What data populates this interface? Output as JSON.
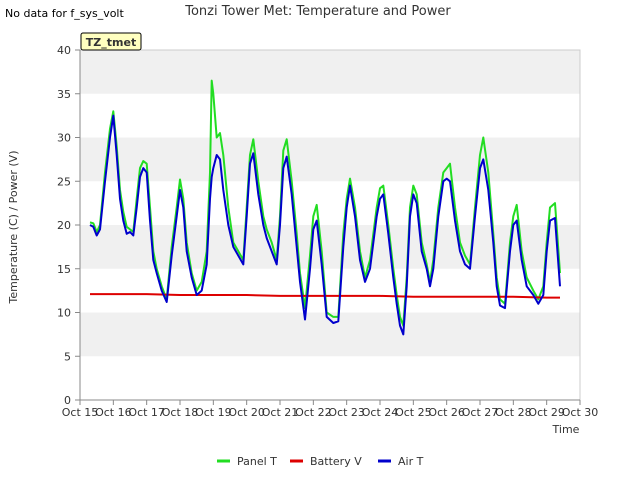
{
  "top_note": "No data for f_sys_volt",
  "chart_data": {
    "type": "line",
    "title": "Tonzi Tower Met: Temperature and Power",
    "xlabel": "Time",
    "ylabel": "Temperature (C) / Power (V)",
    "ylim": [
      0,
      40
    ],
    "xlim": [
      15,
      30
    ],
    "yticks": [
      0,
      5,
      10,
      15,
      20,
      25,
      30,
      35,
      40
    ],
    "xticks": [
      15,
      16,
      17,
      18,
      19,
      20,
      21,
      22,
      23,
      24,
      25,
      26,
      27,
      28,
      29,
      30
    ],
    "xtick_labels": [
      "Oct 15",
      "Oct 16",
      "Oct 17",
      "Oct 18",
      "Oct 19",
      "Oct 20",
      "Oct 21",
      "Oct 22",
      "Oct 23",
      "Oct 24",
      "Oct 25",
      "Oct 26",
      "Oct 27",
      "Oct 28",
      "Oct 29",
      "Oct 30"
    ],
    "grid": "horizontal bands",
    "legend": "bottom-center",
    "annotation": "TZ_tmet",
    "series": [
      {
        "name": "Panel T",
        "color": "#22dd22",
        "x": [
          15.3,
          15.4,
          15.5,
          15.6,
          15.75,
          15.9,
          16.0,
          16.1,
          16.2,
          16.3,
          16.4,
          16.5,
          16.6,
          16.7,
          16.8,
          16.9,
          17.0,
          17.1,
          17.2,
          17.3,
          17.45,
          17.6,
          17.75,
          17.9,
          18.0,
          18.1,
          18.2,
          18.35,
          18.5,
          18.65,
          18.8,
          18.9,
          18.95,
          19.0,
          19.1,
          19.2,
          19.3,
          19.45,
          19.6,
          19.75,
          19.9,
          20.0,
          20.1,
          20.2,
          20.35,
          20.5,
          20.6,
          20.75,
          20.9,
          21.0,
          21.1,
          21.2,
          21.35,
          21.5,
          21.6,
          21.75,
          21.9,
          22.0,
          22.1,
          22.25,
          22.4,
          22.6,
          22.75,
          22.9,
          23.0,
          23.1,
          23.25,
          23.4,
          23.55,
          23.7,
          23.9,
          24.0,
          24.1,
          24.25,
          24.4,
          24.5,
          24.6,
          24.7,
          24.8,
          24.9,
          25.0,
          25.1,
          25.25,
          25.4,
          25.5,
          25.6,
          25.75,
          25.9,
          26.0,
          26.1,
          26.25,
          26.4,
          26.55,
          26.7,
          26.85,
          27.0,
          27.1,
          27.25,
          27.4,
          27.5,
          27.6,
          27.75,
          27.9,
          28.0,
          28.1,
          28.25,
          28.4,
          28.6,
          28.75,
          28.9,
          29.0,
          29.1,
          29.25,
          29.4
        ],
        "values": [
          20.3,
          20.2,
          19.2,
          20.0,
          26.0,
          31.0,
          33.0,
          29.0,
          24.0,
          21.5,
          19.8,
          19.5,
          19.2,
          23.0,
          26.5,
          27.3,
          27.0,
          22.0,
          17.0,
          15.0,
          13.0,
          11.5,
          17.5,
          22.0,
          25.2,
          23.0,
          18.0,
          14.5,
          12.5,
          13.5,
          17.0,
          26.0,
          36.5,
          35.0,
          30.0,
          30.5,
          28.0,
          22.0,
          18.0,
          17.0,
          16.0,
          22.0,
          28.0,
          29.8,
          25.0,
          21.0,
          19.5,
          18.0,
          16.0,
          21.0,
          28.5,
          29.8,
          25.0,
          19.0,
          14.5,
          10.5,
          16.5,
          21.0,
          22.3,
          17.0,
          10.0,
          9.5,
          9.5,
          19.0,
          23.0,
          25.3,
          22.0,
          17.0,
          14.0,
          16.0,
          22.0,
          24.2,
          24.5,
          20.0,
          15.0,
          12.0,
          9.5,
          8.5,
          14.0,
          22.0,
          24.5,
          23.5,
          18.0,
          15.5,
          13.5,
          16.0,
          22.0,
          26.0,
          26.5,
          27.0,
          22.0,
          18.0,
          16.5,
          15.5,
          22.0,
          28.0,
          30.0,
          26.0,
          19.0,
          14.0,
          11.5,
          11.0,
          18.0,
          21.0,
          22.3,
          17.0,
          14.0,
          12.5,
          11.5,
          13.0,
          18.0,
          22.0,
          22.5,
          14.5
        ]
      },
      {
        "name": "Battery V",
        "color": "#dd0000",
        "x": [
          15.3,
          17.0,
          18.0,
          19.0,
          20.0,
          21.0,
          22.0,
          23.0,
          24.0,
          25.0,
          26.0,
          27.0,
          28.0,
          29.0,
          29.4
        ],
        "values": [
          12.1,
          12.1,
          12.0,
          12.0,
          12.0,
          11.9,
          11.9,
          11.9,
          11.9,
          11.8,
          11.8,
          11.8,
          11.8,
          11.7,
          11.7
        ]
      },
      {
        "name": "Air T",
        "color": "#0000cc",
        "x": [
          15.3,
          15.4,
          15.5,
          15.6,
          15.75,
          15.9,
          16.0,
          16.1,
          16.2,
          16.3,
          16.4,
          16.5,
          16.6,
          16.7,
          16.8,
          16.9,
          17.0,
          17.1,
          17.2,
          17.3,
          17.45,
          17.6,
          17.75,
          17.9,
          18.0,
          18.1,
          18.2,
          18.35,
          18.5,
          18.65,
          18.8,
          18.9,
          18.95,
          19.0,
          19.1,
          19.2,
          19.3,
          19.45,
          19.6,
          19.75,
          19.9,
          20.0,
          20.1,
          20.2,
          20.35,
          20.5,
          20.6,
          20.75,
          20.9,
          21.0,
          21.1,
          21.2,
          21.35,
          21.5,
          21.6,
          21.75,
          21.9,
          22.0,
          22.1,
          22.25,
          22.4,
          22.6,
          22.75,
          22.9,
          23.0,
          23.1,
          23.25,
          23.4,
          23.55,
          23.7,
          23.9,
          24.0,
          24.1,
          24.25,
          24.4,
          24.5,
          24.6,
          24.7,
          24.8,
          24.9,
          25.0,
          25.1,
          25.25,
          25.4,
          25.5,
          25.6,
          25.75,
          25.9,
          26.0,
          26.1,
          26.25,
          26.4,
          26.55,
          26.7,
          26.85,
          27.0,
          27.1,
          27.25,
          27.4,
          27.5,
          27.6,
          27.75,
          27.9,
          28.0,
          28.1,
          28.25,
          28.4,
          28.6,
          28.75,
          28.9,
          29.0,
          29.1,
          29.25,
          29.4
        ],
        "values": [
          20.0,
          19.8,
          18.8,
          19.5,
          25.0,
          30.0,
          32.5,
          28.0,
          23.0,
          20.5,
          19.0,
          19.2,
          18.8,
          22.0,
          25.5,
          26.5,
          26.0,
          20.5,
          16.0,
          14.5,
          12.5,
          11.2,
          16.5,
          21.0,
          24.0,
          22.0,
          17.0,
          14.0,
          12.0,
          12.5,
          15.5,
          23.0,
          25.5,
          26.5,
          28.0,
          27.5,
          24.0,
          20.0,
          17.5,
          16.5,
          15.5,
          21.0,
          27.0,
          28.2,
          23.5,
          20.0,
          18.5,
          17.0,
          15.5,
          20.0,
          26.5,
          27.8,
          23.5,
          17.5,
          13.5,
          9.2,
          15.0,
          19.5,
          20.5,
          15.5,
          9.5,
          8.8,
          9.0,
          17.5,
          22.0,
          24.5,
          21.0,
          16.0,
          13.5,
          15.0,
          21.0,
          23.0,
          23.5,
          19.0,
          14.0,
          11.0,
          8.5,
          7.5,
          13.0,
          21.0,
          23.5,
          22.5,
          17.0,
          15.0,
          13.0,
          15.0,
          21.0,
          25.0,
          25.3,
          25.0,
          20.5,
          17.0,
          15.5,
          15.0,
          21.0,
          26.5,
          27.5,
          24.0,
          18.0,
          13.0,
          10.8,
          10.5,
          17.0,
          20.0,
          20.5,
          16.0,
          13.0,
          12.0,
          11.0,
          12.0,
          17.0,
          20.5,
          20.8,
          13.0
        ]
      }
    ]
  }
}
